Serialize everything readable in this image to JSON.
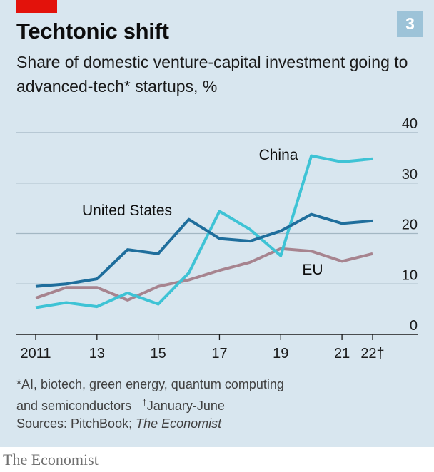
{
  "header": {
    "title": "Techtonic shift",
    "badge": "3",
    "subtitle": "Share of domestic venture-capital investment going to advanced-tech* startups, %"
  },
  "colors": {
    "china": "#3ec3d5",
    "united_states": "#1f6e9c",
    "eu": "#a7848f",
    "grid": "#a3b7c3",
    "accent_red": "#e3120b",
    "badge": "#9dc3d8"
  },
  "chart_data": {
    "type": "line",
    "x": [
      2011,
      2012,
      2013,
      2014,
      2015,
      2016,
      2017,
      2018,
      2019,
      2020,
      2021,
      2022
    ],
    "xticks": [
      {
        "value": 2011,
        "label": "2011"
      },
      {
        "value": 2013,
        "label": "13"
      },
      {
        "value": 2015,
        "label": "15"
      },
      {
        "value": 2017,
        "label": "17"
      },
      {
        "value": 2019,
        "label": "19"
      },
      {
        "value": 2021,
        "label": "21"
      },
      {
        "value": 2022,
        "label": "22†"
      }
    ],
    "yticks": [
      0,
      10,
      20,
      30,
      40
    ],
    "ylim": [
      0,
      40
    ],
    "xlim": [
      2011,
      2022
    ],
    "grid": true,
    "series": [
      {
        "name": "China",
        "key": "china",
        "values": [
          5.3,
          6.3,
          5.5,
          8.2,
          6.0,
          12.2,
          24.4,
          20.8,
          15.6,
          35.4,
          34.2,
          34.8
        ]
      },
      {
        "name": "United States",
        "key": "united_states",
        "values": [
          9.5,
          10.0,
          11.0,
          16.8,
          16.0,
          22.8,
          19.0,
          18.5,
          20.5,
          23.8,
          22.0,
          22.5
        ]
      },
      {
        "name": "EU",
        "key": "eu",
        "values": [
          7.2,
          9.3,
          9.3,
          6.8,
          9.5,
          10.8,
          12.7,
          14.3,
          17.0,
          16.5,
          14.5,
          16.0
        ]
      }
    ]
  },
  "footnote": {
    "line1": "*AI, biotech, green energy, quantum computing",
    "line2_prefix": "and semiconductors",
    "dagger": "†",
    "line2_suffix": "January-June"
  },
  "sources": {
    "prefix": "Sources: PitchBook; ",
    "italic": "The Economist"
  },
  "brand": "The Economist"
}
